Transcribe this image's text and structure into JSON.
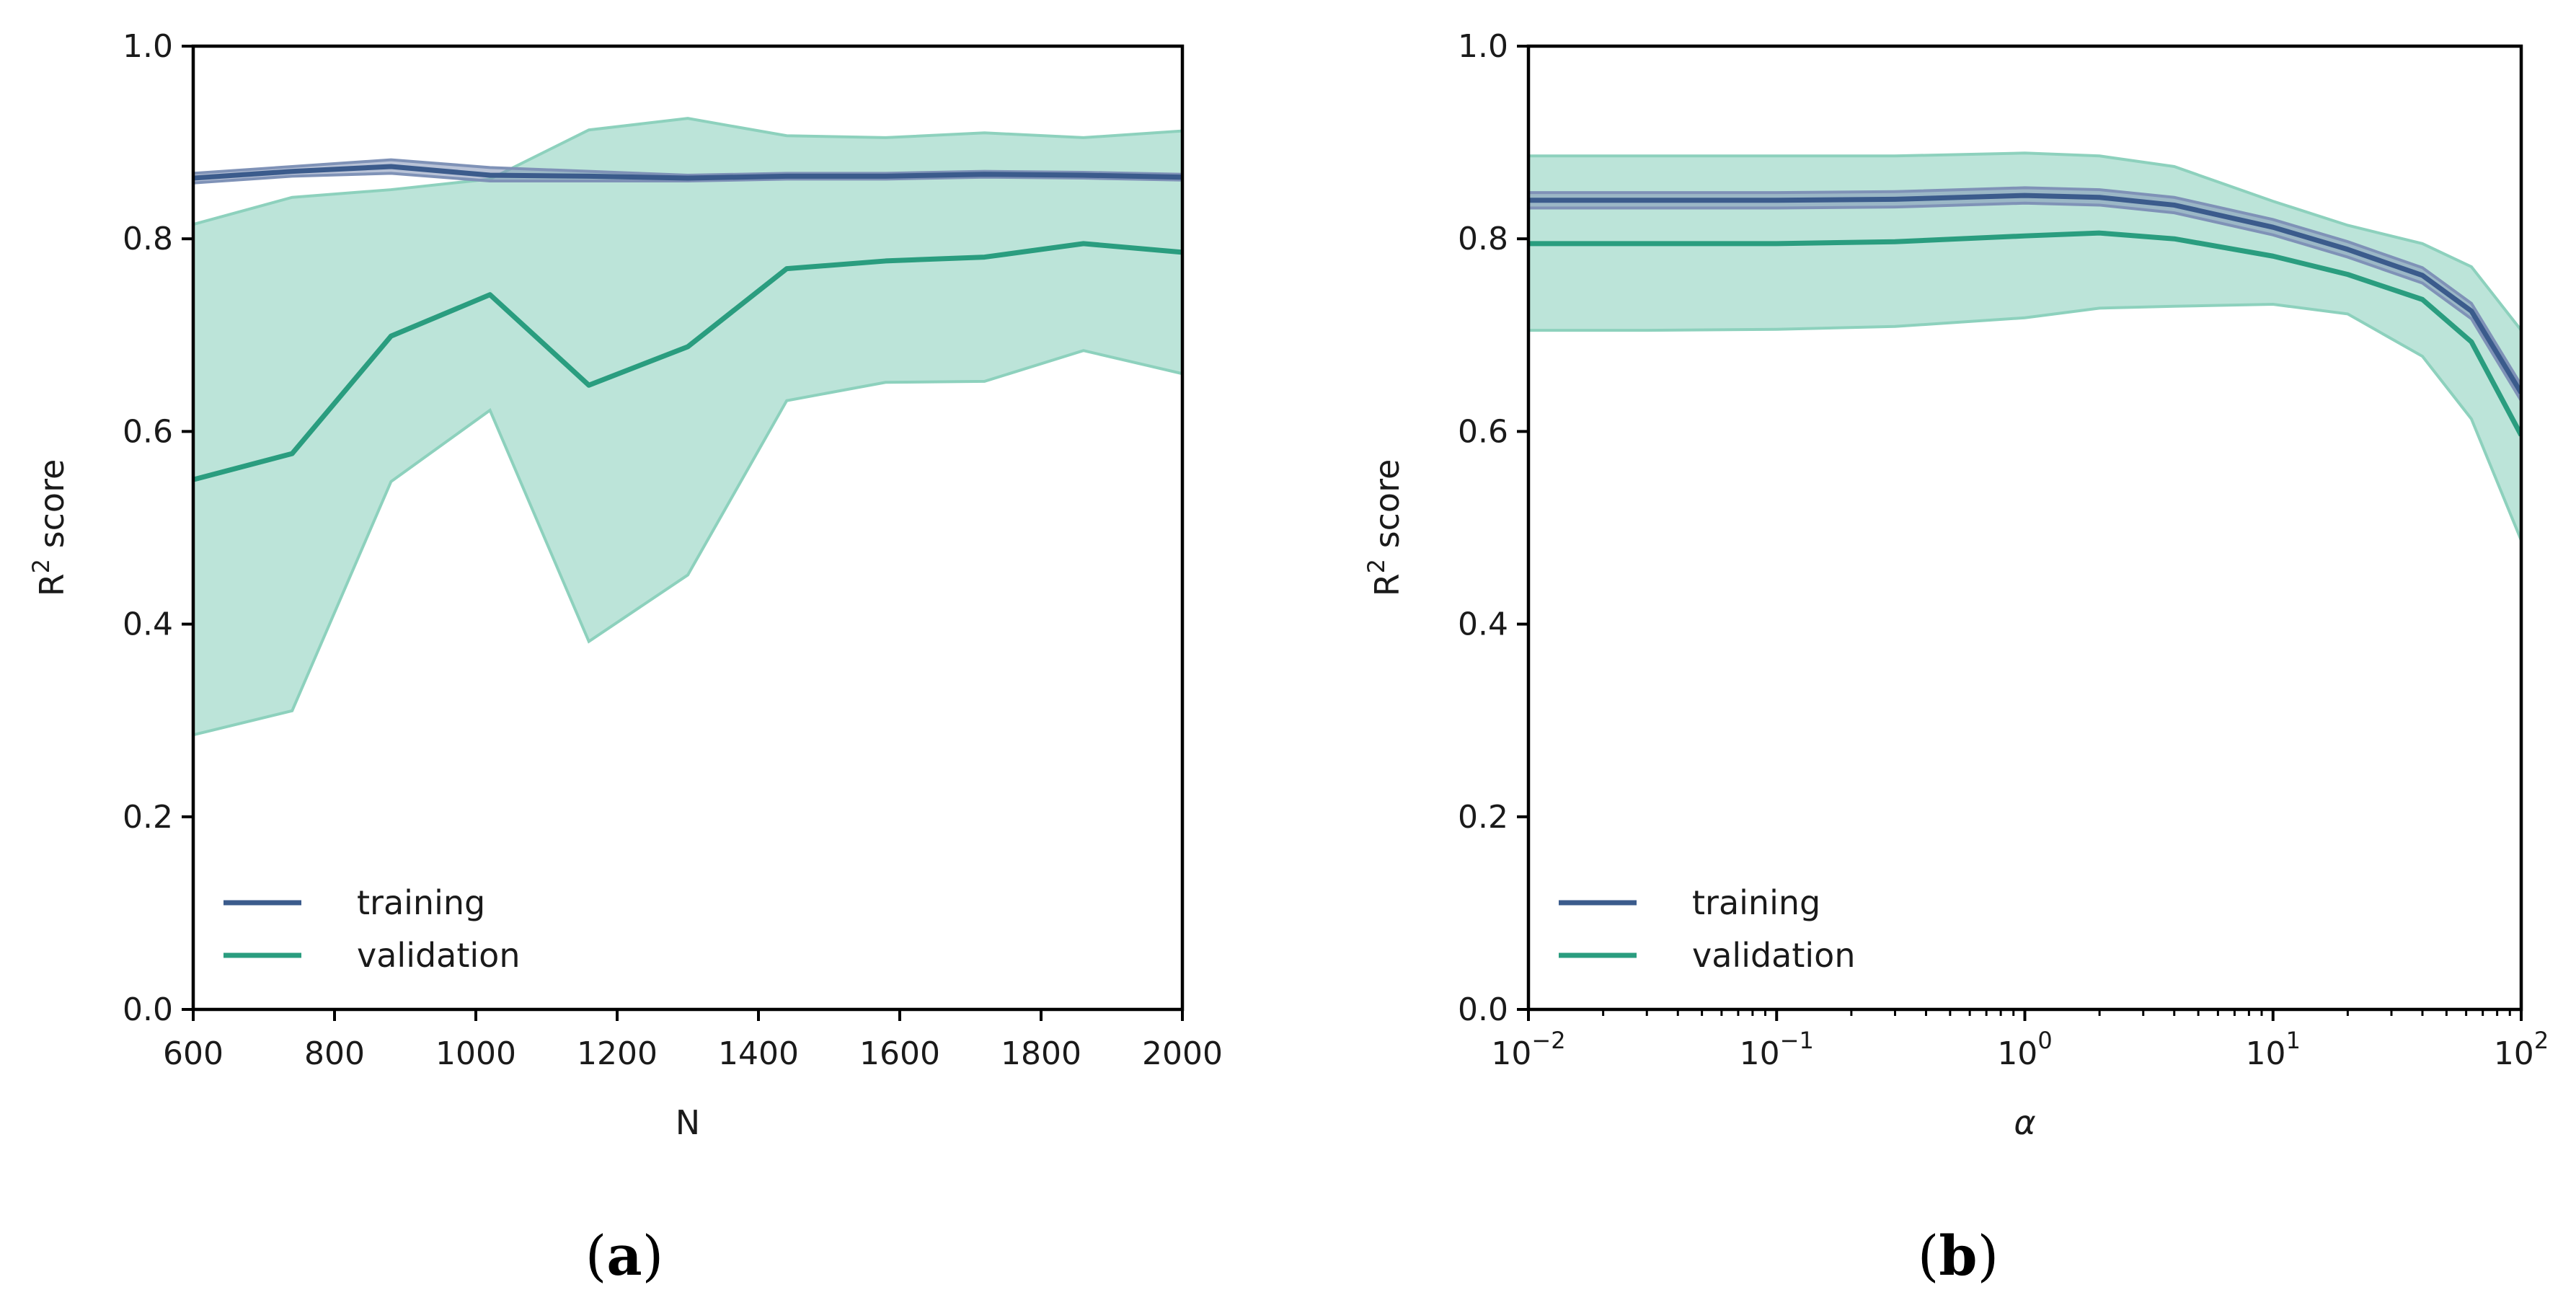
{
  "colors": {
    "training": "#3b5b8c",
    "training_band": "#7f92b7",
    "validation": "#2a9d7f",
    "validation_band": "#b6e2d6",
    "validation_band_edge": "#8dd1bd"
  },
  "chart_data": [
    {
      "type": "line",
      "panel": "a",
      "panel_label_open": "(",
      "panel_label_letter": "a",
      "panel_label_close": ")",
      "xlabel": "N",
      "ylabel_main": "R",
      "ylabel_sup": "2",
      "ylabel_rest": " score",
      "xscale": "linear",
      "xlim": [
        600,
        2000
      ],
      "ylim": [
        0.0,
        1.0
      ],
      "xticks": [
        {
          "v": 600,
          "label": "600"
        },
        {
          "v": 800,
          "label": "800"
        },
        {
          "v": 1000,
          "label": "1000"
        },
        {
          "v": 1200,
          "label": "1200"
        },
        {
          "v": 1400,
          "label": "1400"
        },
        {
          "v": 1600,
          "label": "1600"
        },
        {
          "v": 1800,
          "label": "1800"
        },
        {
          "v": 2000,
          "label": "2000"
        }
      ],
      "yticks": [
        {
          "v": 0.0,
          "label": "0.0"
        },
        {
          "v": 0.2,
          "label": "0.2"
        },
        {
          "v": 0.4,
          "label": "0.4"
        },
        {
          "v": 0.6,
          "label": "0.6"
        },
        {
          "v": 0.8,
          "label": "0.8"
        },
        {
          "v": 1.0,
          "label": "1.0"
        }
      ],
      "legend_position": "lower-left",
      "x": [
        600,
        740,
        880,
        1020,
        1160,
        1300,
        1440,
        1580,
        1720,
        1860,
        2000
      ],
      "series": [
        {
          "name": "training",
          "values": [
            0.863,
            0.87,
            0.875,
            0.866,
            0.865,
            0.863,
            0.865,
            0.865,
            0.867,
            0.866,
            0.864
          ],
          "lower": [
            0.858,
            0.865,
            0.868,
            0.86,
            0.86,
            0.86,
            0.862,
            0.862,
            0.864,
            0.863,
            0.861
          ],
          "upper": [
            0.868,
            0.875,
            0.882,
            0.874,
            0.87,
            0.866,
            0.868,
            0.868,
            0.87,
            0.869,
            0.867
          ]
        },
        {
          "name": "validation",
          "values": [
            0.55,
            0.577,
            0.699,
            0.742,
            0.648,
            0.688,
            0.769,
            0.777,
            0.781,
            0.795,
            0.786
          ],
          "lower": [
            0.285,
            0.31,
            0.548,
            0.622,
            0.382,
            0.451,
            0.632,
            0.651,
            0.652,
            0.684,
            0.66
          ],
          "upper": [
            0.815,
            0.843,
            0.851,
            0.862,
            0.913,
            0.925,
            0.907,
            0.905,
            0.91,
            0.905,
            0.912
          ]
        }
      ]
    },
    {
      "type": "line",
      "panel": "b",
      "panel_label_open": "(",
      "panel_label_letter": "b",
      "panel_label_close": ")",
      "xlabel": "α",
      "ylabel_main": "R",
      "ylabel_sup": "2",
      "ylabel_rest": " score",
      "xscale": "log",
      "xlim": [
        0.01,
        100
      ],
      "ylim": [
        0.0,
        1.0
      ],
      "xticks": [
        {
          "v": 0.01,
          "base": "10",
          "exp": "−2"
        },
        {
          "v": 0.1,
          "base": "10",
          "exp": "−1"
        },
        {
          "v": 1,
          "base": "10",
          "exp": "0"
        },
        {
          "v": 10,
          "base": "10",
          "exp": "1"
        },
        {
          "v": 100,
          "base": "10",
          "exp": "2"
        }
      ],
      "yticks": [
        {
          "v": 0.0,
          "label": "0.0"
        },
        {
          "v": 0.2,
          "label": "0.2"
        },
        {
          "v": 0.4,
          "label": "0.4"
        },
        {
          "v": 0.6,
          "label": "0.6"
        },
        {
          "v": 0.8,
          "label": "0.8"
        },
        {
          "v": 1.0,
          "label": "1.0"
        }
      ],
      "legend_position": "lower-left",
      "x": [
        0.01,
        0.03,
        0.1,
        0.3,
        1,
        2,
        4,
        10,
        20,
        40,
        63,
        100
      ],
      "series": [
        {
          "name": "training",
          "values": [
            0.84,
            0.84,
            0.84,
            0.841,
            0.845,
            0.843,
            0.835,
            0.812,
            0.789,
            0.762,
            0.725,
            0.64
          ],
          "lower": [
            0.832,
            0.832,
            0.832,
            0.833,
            0.837,
            0.835,
            0.827,
            0.804,
            0.781,
            0.754,
            0.717,
            0.632
          ],
          "upper": [
            0.848,
            0.848,
            0.848,
            0.849,
            0.853,
            0.851,
            0.843,
            0.82,
            0.797,
            0.77,
            0.733,
            0.648
          ]
        },
        {
          "name": "validation",
          "values": [
            0.795,
            0.795,
            0.795,
            0.797,
            0.803,
            0.806,
            0.8,
            0.782,
            0.763,
            0.737,
            0.693,
            0.596
          ],
          "lower": [
            0.705,
            0.705,
            0.706,
            0.709,
            0.718,
            0.728,
            0.73,
            0.732,
            0.722,
            0.678,
            0.613,
            0.487
          ],
          "upper": [
            0.886,
            0.886,
            0.886,
            0.886,
            0.889,
            0.886,
            0.875,
            0.839,
            0.814,
            0.795,
            0.771,
            0.705
          ]
        }
      ]
    }
  ]
}
